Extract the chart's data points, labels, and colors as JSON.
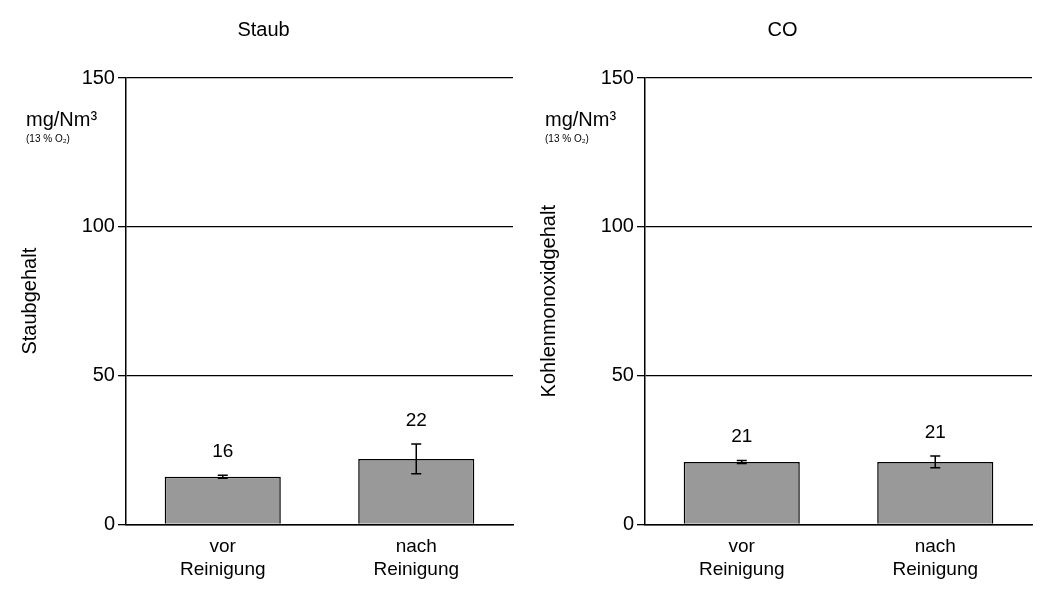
{
  "chart_data": [
    {
      "type": "bar",
      "title": "Staub",
      "ylabel": "Staubgehalt",
      "annotations": [
        "mg/Nm³",
        "(13 % O₂)"
      ],
      "categories": [
        "vor Reinigung",
        "nach Reinigung"
      ],
      "values": [
        16,
        22
      ],
      "errors": [
        0.5,
        5
      ],
      "color": "#999999",
      "ylim": [
        0,
        150
      ],
      "yticks": [
        0,
        50,
        100,
        150
      ],
      "grid": "y",
      "data_labels": true
    },
    {
      "type": "bar",
      "title": "CO",
      "ylabel": "Kohlenmonoxidgehalt",
      "annotations": [
        "mg/Nm³",
        "(13 % O₂)"
      ],
      "categories": [
        "vor Reinigung",
        "nach Reinigung"
      ],
      "values": [
        21,
        21
      ],
      "errors": [
        0.5,
        2
      ],
      "color": "#999999",
      "ylim": [
        0,
        150
      ],
      "yticks": [
        0,
        50,
        100,
        150
      ],
      "grid": "y",
      "data_labels": true
    }
  ]
}
